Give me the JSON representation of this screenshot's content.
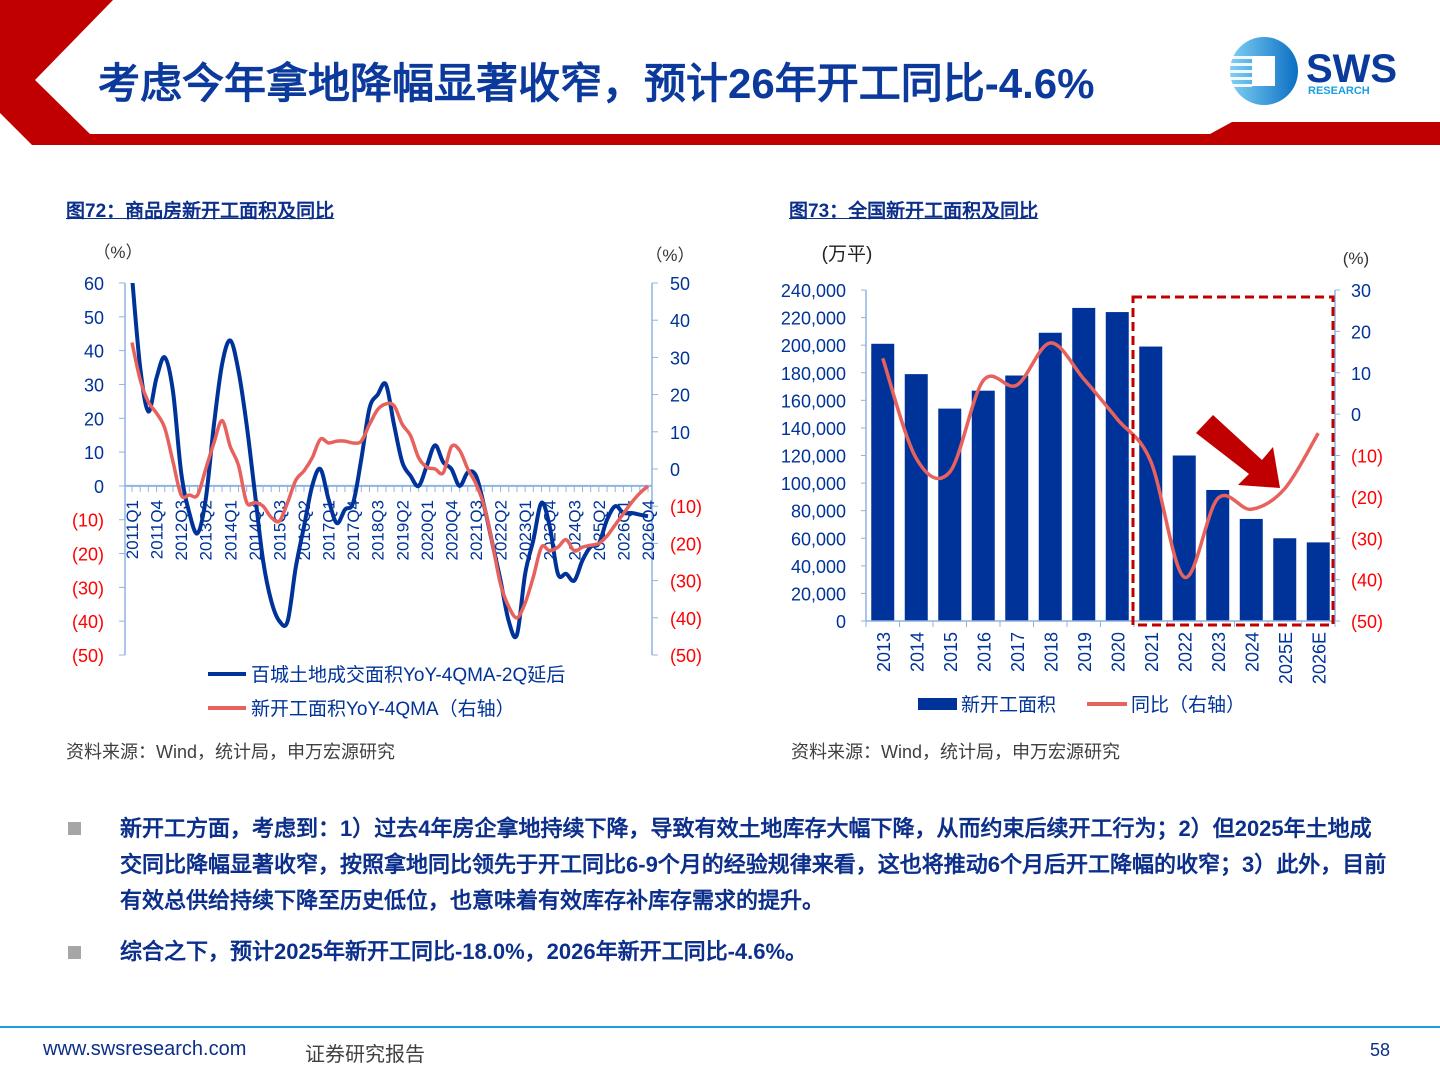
{
  "header": {
    "title": "考虑今年拿地降幅显著收窄，预计26年开工同比-4.6%",
    "logo_text": "SWS",
    "logo_subtext": "RESEARCH",
    "accent_color": "#c00000",
    "title_color": "#0b3a9c"
  },
  "figures": [
    {
      "title": "图72：商品房新开工面积及同比",
      "source": "资料来源：Wind，统计局，申万宏源研究"
    },
    {
      "title": "图73：全国新开工面积及同比",
      "source": "资料来源：Wind，统计局，申万宏源研究"
    }
  ],
  "chart_data": [
    {
      "type": "line",
      "left_unit": "（%）",
      "right_unit": "（%）",
      "left_ylim": [
        -50,
        60
      ],
      "right_ylim": [
        -50,
        50
      ],
      "left_ticks": [
        "60",
        "50",
        "40",
        "30",
        "20",
        "10",
        "0",
        "(10)",
        "(20)",
        "(30)",
        "(40)",
        "(50)"
      ],
      "left_tick_values": [
        60,
        50,
        40,
        30,
        20,
        10,
        0,
        -10,
        -20,
        -30,
        -40,
        -50
      ],
      "right_ticks": [
        "50",
        "40",
        "30",
        "20",
        "10",
        "0",
        "(10)",
        "(20)",
        "(30)",
        "(40)",
        "(50)"
      ],
      "right_tick_values": [
        50,
        40,
        30,
        20,
        10,
        0,
        -10,
        -20,
        -30,
        -40,
        -50
      ],
      "x_tick_labels": [
        "2011Q1",
        "2011Q4",
        "2012Q3",
        "2013Q2",
        "2014Q1",
        "2014Q4",
        "2015Q3",
        "2016Q2",
        "2017Q1",
        "2017Q4",
        "2018Q3",
        "2019Q2",
        "2020Q1",
        "2020Q4",
        "2021Q3",
        "2022Q2",
        "2023Q1",
        "2023Q4",
        "2024Q3",
        "2025Q2",
        "2026Q1",
        "2026Q4"
      ],
      "x_start": "2011Q1",
      "x_end": "2026Q4",
      "series": [
        {
          "name": "百城土地成交面积YoY-4QMA-2Q延后",
          "axis": "left",
          "color": "#003399",
          "values": [
            62,
            35,
            22,
            32,
            38,
            28,
            4,
            -8,
            -14,
            -4,
            18,
            36,
            43,
            34,
            18,
            -2,
            -22,
            -34,
            -40,
            -40,
            -24,
            -12,
            0,
            5,
            -4,
            -11,
            -7,
            -5,
            8,
            23,
            27,
            30,
            18,
            7,
            3,
            0,
            6,
            12,
            7,
            5,
            0,
            4,
            3,
            -6,
            -17,
            -28,
            -40,
            -44,
            -26,
            -16,
            -5,
            -12,
            -26,
            -26,
            -28,
            -22,
            -18,
            -17,
            -10,
            -6,
            -8,
            -8,
            -8.5,
            -9
          ]
        },
        {
          "name": "新开工面积YoY-4QMA（右轴）",
          "axis": "right",
          "color": "#e8625d",
          "values": [
            34,
            24,
            18,
            15,
            11,
            2,
            -7,
            -7,
            -7,
            0,
            7,
            13,
            6,
            1,
            -9,
            -9,
            -10,
            -13,
            -14,
            -9,
            -3,
            -0.5,
            3,
            8,
            7,
            7.5,
            7.5,
            7,
            7.5,
            12,
            16,
            17.5,
            17,
            12,
            9,
            3,
            0.5,
            0,
            -1,
            6,
            5,
            0,
            -4,
            -10,
            -20,
            -31,
            -37,
            -40,
            -36,
            -29,
            -21,
            -22,
            -21,
            -19,
            -22,
            -21,
            -20.5,
            -20,
            -18,
            -15,
            -12,
            -9,
            -6.5,
            -4.6
          ]
        }
      ],
      "legend_placement": "bottom",
      "grid": false
    },
    {
      "type": "bar+line",
      "left_unit": "(万平)",
      "right_unit": "(%)",
      "left_ylim": [
        0,
        240000
      ],
      "right_ylim": [
        -50,
        30
      ],
      "left_ticks": [
        "240,000",
        "220,000",
        "200,000",
        "180,000",
        "160,000",
        "140,000",
        "120,000",
        "100,000",
        "80,000",
        "60,000",
        "40,000",
        "20,000",
        "0"
      ],
      "left_tick_values": [
        240000,
        220000,
        200000,
        180000,
        160000,
        140000,
        120000,
        100000,
        80000,
        60000,
        40000,
        20000,
        0
      ],
      "right_ticks": [
        "30",
        "20",
        "10",
        "0",
        "(10)",
        "(20)",
        "(30)",
        "(40)",
        "(50)"
      ],
      "right_tick_values": [
        30,
        20,
        10,
        0,
        -10,
        -20,
        -30,
        -40,
        -50
      ],
      "categories": [
        "2013",
        "2014",
        "2015",
        "2016",
        "2017",
        "2018",
        "2019",
        "2020",
        "2021",
        "2022",
        "2023",
        "2024",
        "2025E",
        "2026E"
      ],
      "series": [
        {
          "name": "新开工面积",
          "type": "bar",
          "axis": "left",
          "color": "#003399",
          "values": [
            201000,
            179000,
            154000,
            167000,
            178000,
            209000,
            227000,
            224000,
            199000,
            120000,
            95000,
            74000,
            60000,
            57000
          ]
        },
        {
          "name": "同比（右轴）",
          "type": "line",
          "axis": "right",
          "color": "#e8625d",
          "values": [
            13.5,
            -10.7,
            -14,
            8.1,
            7,
            17.2,
            8.5,
            -1.2,
            -11.4,
            -39.4,
            -20.4,
            -23,
            -18,
            -4.6
          ]
        }
      ],
      "highlight_box": {
        "from": "2021",
        "to": "2026E",
        "color": "#c00000",
        "style": "dashed"
      },
      "annotation_arrow": {
        "color": "#c00000",
        "direction": "down-right"
      },
      "legend_placement": "bottom",
      "grid": false
    }
  ],
  "bullets": [
    "新开工方面，考虑到：1）过去4年房企拿地持续下降，导致有效土地库存大幅下降，从而约束后续开工行为；2）但2025年土地成交同比降幅显著收窄，按照拿地同比领先于开工同比6-9个月的经验规律来看，这也将推动6个月后开工降幅的收窄；3）此外，目前有效总供给持续下降至历史低位，也意味着有效库存补库存需求的提升。",
    "综合之下，预计2025年新开工同比-18.0%，2026年新开工同比-4.6%。"
  ],
  "footer": {
    "url": "www.swsresearch.com",
    "label": "证券研究报告",
    "page": "58"
  }
}
